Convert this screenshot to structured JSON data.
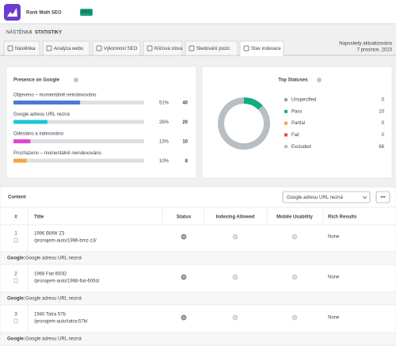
{
  "header": {
    "title": "Rank Math SEO",
    "badge": "PRO"
  },
  "breadcrumb": {
    "items": [
      "NÁSTĚNKA",
      "STATISTIKY"
    ],
    "separator": "/"
  },
  "updated": {
    "label": "Naposledy aktualizováno",
    "date": "7 prosince, 2023"
  },
  "tabs": {
    "items": [
      "Nástěnka",
      "Analýza webu",
      "Výkonnost SEO",
      "Klíčová slova",
      "Sledování pozic",
      "Stav indexace"
    ],
    "active": 5
  },
  "presence": {
    "title": "Presence on Google",
    "items": [
      {
        "label": "Objeveno – momentálně neindexováno",
        "percent": 51,
        "percent_label": "51%",
        "count": 40,
        "color": "#4a7bd0"
      },
      {
        "label": "Google adresu URL nezná",
        "percent": 26,
        "percent_label": "26%",
        "count": 20,
        "color": "#1fc5d6"
      },
      {
        "label": "Odesláno a indexováno",
        "percent": 13,
        "percent_label": "13%",
        "count": 10,
        "color": "#e044d8"
      },
      {
        "label": "Procházeno – momentálně neindexováno",
        "percent": 10,
        "percent_label": "10%",
        "count": 8,
        "color": "#f2a541"
      }
    ]
  },
  "statuses": {
    "title": "Top Statuses",
    "items": [
      {
        "label": "Unspecified",
        "count": 0,
        "color": "#9aa0a6"
      },
      {
        "label": "Pass",
        "count": 10,
        "color": "#10ac84"
      },
      {
        "label": "Partial",
        "count": 0,
        "color": "#f2a541"
      },
      {
        "label": "Fail",
        "count": 0,
        "color": "#e5484d"
      },
      {
        "label": "Excluded",
        "count": 68,
        "color": "#b8bec4"
      }
    ]
  },
  "content": {
    "title": "Content",
    "filter": "Google adresu URL nezná",
    "more": "•••",
    "columns": [
      "#",
      "Title",
      "Status",
      "Indexing Allowed",
      "Mobile Usability",
      "Rich Results"
    ],
    "rows": [
      {
        "number": 1,
        "title": "1996 BMW Z3",
        "url": "/pronajem-auto/1996-bmz-z3/",
        "rich": "None",
        "note_label": "Google:",
        "note": "Google adresu URL nezná"
      },
      {
        "number": 2,
        "title": "1968 Fiat 600D",
        "url": "/pronajem-auto/1968-fiat-600d/",
        "rich": "None",
        "note_label": "Google:",
        "note": "Google adresu URL nezná"
      },
      {
        "number": 3,
        "title": "1940 Tatra 57b",
        "url": "/pronajem-auto/tatra-57b/",
        "rich": "None",
        "note_label": "Google:",
        "note": "Google adresu URL nezná"
      }
    ]
  }
}
